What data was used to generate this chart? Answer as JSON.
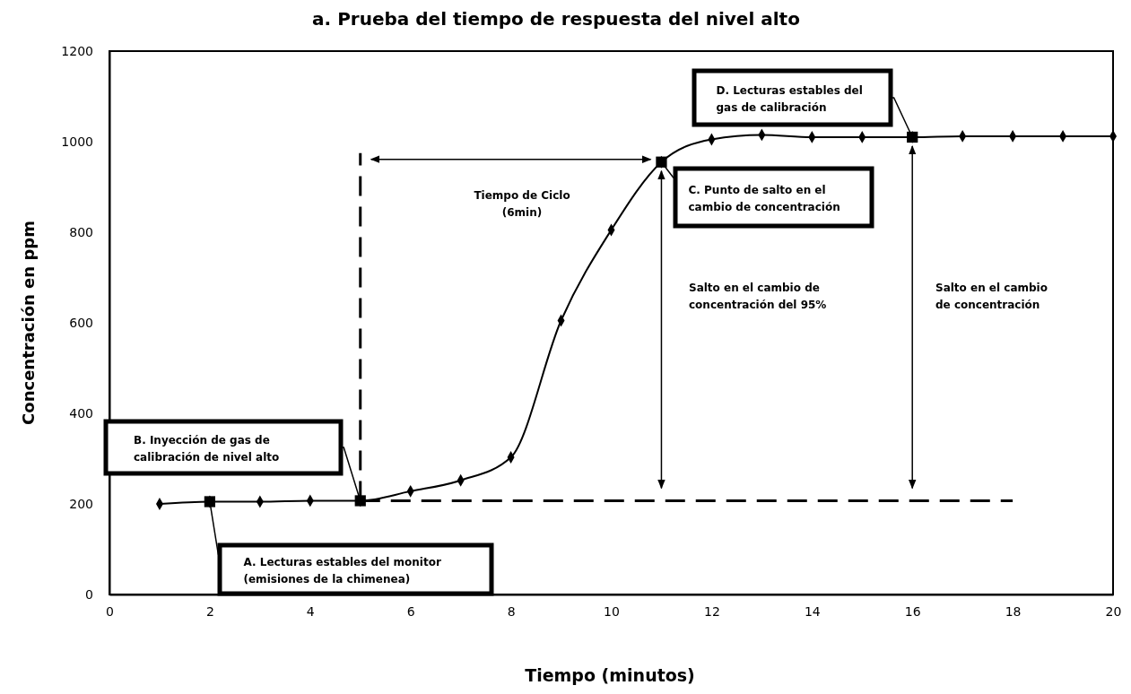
{
  "chart_data": {
    "type": "line",
    "title": "a.    Prueba del tiempo de respuesta del nivel alto",
    "xlabel": "Tiempo (minutos)",
    "ylabel": "Concentración en ppm",
    "xlim": [
      0,
      20
    ],
    "xticks": [
      0,
      2,
      4,
      6,
      8,
      10,
      12,
      14,
      16,
      18,
      20
    ],
    "ylim": [
      0,
      1200
    ],
    "yticks": [
      0,
      200,
      400,
      600,
      800,
      1000,
      1200
    ],
    "grid": false,
    "series": [
      {
        "type": "line",
        "color": "#000000",
        "marker": "diamond",
        "line_style": "solid",
        "x": [
          1,
          2,
          3,
          4,
          5,
          6,
          7,
          8,
          9,
          10,
          11,
          12,
          13,
          14,
          15,
          16,
          17,
          18,
          19,
          20
        ],
        "values": [
          200,
          205,
          205,
          207,
          207,
          228,
          252,
          303,
          605,
          805,
          955,
          1005,
          1015,
          1010,
          1010,
          1010,
          1012,
          1012,
          1012,
          1012
        ]
      },
      {
        "type": "scatter",
        "color": "#000000",
        "marker": "square",
        "x": [
          2,
          5,
          11,
          16
        ],
        "values": [
          205,
          207,
          955,
          1010
        ]
      },
      {
        "type": "line",
        "color": "#000000",
        "marker": "none",
        "line_style": "dashed",
        "x": [
          5,
          18
        ],
        "values": [
          207,
          207
        ]
      },
      {
        "type": "line",
        "color": "#000000",
        "marker": "none",
        "line_style": "dashed",
        "x": [
          5,
          5
        ],
        "values": [
          207,
          975
        ]
      }
    ],
    "annotations": [
      "A. Lecturas estables del monitor (emisiones de la chimenea)",
      "B. Inyección de gas de calibración de nivel alto",
      "C. Punto de salto en el cambio de concentración",
      "D. Lecturas estables del gas de calibración",
      "Tiempo de Ciclo (6min)",
      "Salto en el cambio de concentración del 95%",
      "Salto en el cambio de concentración"
    ]
  }
}
